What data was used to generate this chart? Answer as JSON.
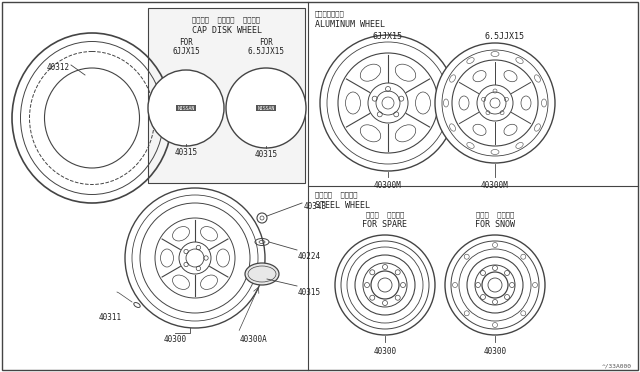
{
  "bg_color": "#ffffff",
  "line_color": "#444444",
  "title_diagram_ref": "^/33A000",
  "left_panel": {
    "tire_label": "40312",
    "wheel_label": "40300",
    "wheel_a_label": "40300A",
    "lug_nut_label": "40311",
    "center_cap_label": "40315",
    "valve_label": "40343",
    "ring_label": "40224"
  },
  "top_middle_panel": {
    "japanese_title": "ディスク  ホイール  キャップ",
    "english_title": "CAP DISK WHEEL",
    "cap1_for": "FOR",
    "cap1_size": "6JJX15",
    "cap2_for": "FOR",
    "cap2_size": "6.5JJX15",
    "cap1_label": "40315",
    "cap2_label": "40315"
  },
  "top_right_panel": {
    "japanese_title": "アルミホイール",
    "english_title": "ALUMINUM WHEEL",
    "wheel1_size": "6JJX15",
    "wheel2_size": "6.5JJX15",
    "wheel1_label": "40300M",
    "wheel2_label": "40300M"
  },
  "bottom_right_panel": {
    "japanese_title": "スチール  ホイール",
    "english_title": "STEEL WHEEL",
    "spare_japanese": "スペア  タイヤ用",
    "spare_english": "FOR SPARE",
    "snow_japanese": "スノー  タイヤ用",
    "snow_english": "FOR SNOW",
    "spare_label": "40300",
    "snow_label": "40300"
  }
}
